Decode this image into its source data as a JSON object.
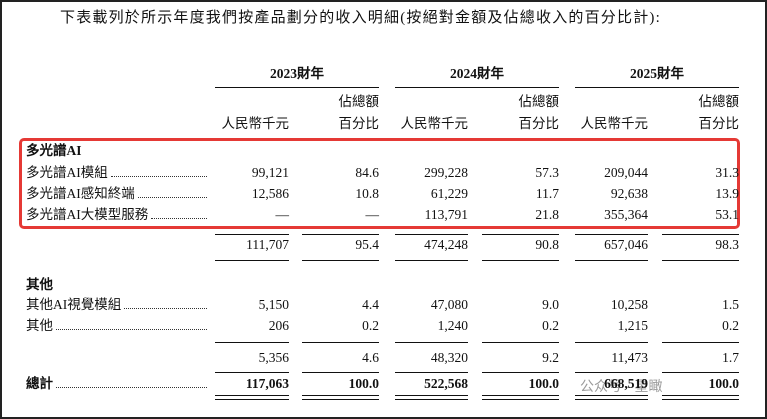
{
  "title": "下表載列於所示年度我們按產品劃分的收入明細(按絕對金額及佔總收入的百分比計):",
  "column_groups": [
    {
      "year": "2023財年",
      "amount_header": "人民幣千元",
      "percent_header": [
        "佔總額",
        "百分比"
      ]
    },
    {
      "year": "2024財年",
      "amount_header": "人民幣千元",
      "percent_header": [
        "佔總額",
        "百分比"
      ]
    },
    {
      "year": "2025財年",
      "amount_header": "人民幣千元",
      "percent_header": [
        "佔總額",
        "百分比"
      ]
    }
  ],
  "sections": [
    {
      "label": "多光譜AI",
      "rows": [
        {
          "label": "多光譜AI模組",
          "cells": [
            "99,121",
            "84.6",
            "299,228",
            "57.3",
            "209,044",
            "31.3"
          ]
        },
        {
          "label": "多光譜AI感知終端",
          "cells": [
            "12,586",
            "10.8",
            "61,229",
            "11.7",
            "92,638",
            "13.9"
          ]
        },
        {
          "label": "多光譜AI大模型服務",
          "cells": [
            "—",
            "—",
            "113,791",
            "21.8",
            "355,364",
            "53.1"
          ]
        }
      ],
      "subtotal": [
        "111,707",
        "95.4",
        "474,248",
        "90.8",
        "657,046",
        "98.3"
      ]
    },
    {
      "label": "其他",
      "rows": [
        {
          "label": "其他AI視覺模組",
          "cells": [
            "5,150",
            "4.4",
            "47,080",
            "9.0",
            "10,258",
            "1.5"
          ]
        },
        {
          "label": "其他",
          "cells": [
            "206",
            "0.2",
            "1,240",
            "0.2",
            "1,215",
            "0.2"
          ]
        }
      ],
      "subtotal": [
        "5,356",
        "4.6",
        "48,320",
        "9.2",
        "11,473",
        "1.7"
      ]
    }
  ],
  "total": {
    "label": "總計",
    "cells": [
      "117,063",
      "100.0",
      "522,568",
      "100.0",
      "668,519",
      "100.0"
    ]
  },
  "watermark": "公众号 · 星瞰"
}
